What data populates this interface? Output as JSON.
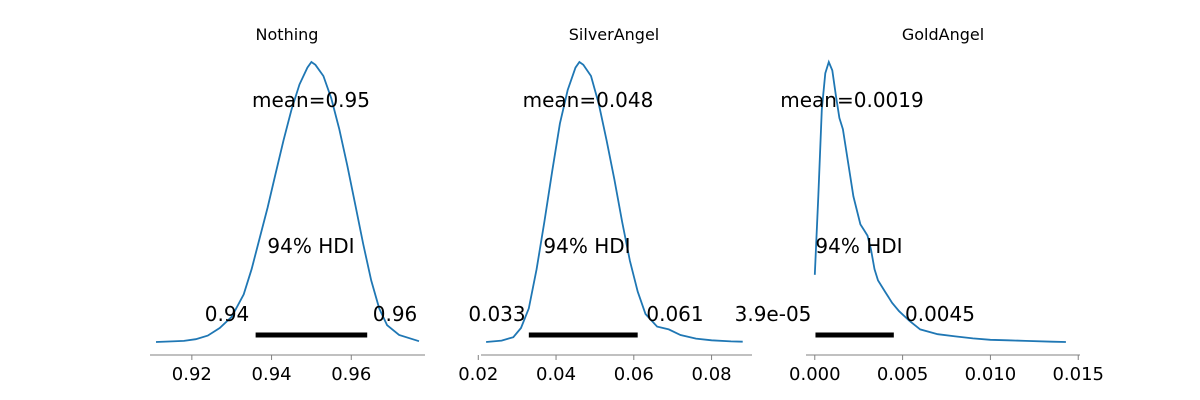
{
  "colors": {
    "density": "#1f77b4",
    "hdi_bar": "#000000",
    "axis": "#808080"
  },
  "hdi_label": "94% HDI",
  "chart_data": [
    {
      "type": "line",
      "title": "Nothing",
      "mean_label": "mean=0.95",
      "hdi": [
        0.936,
        0.964
      ],
      "hdi_labels": [
        "0.94",
        "0.96"
      ],
      "xlim": [
        0.9095,
        0.9785
      ],
      "ticks": [
        0.92,
        0.94,
        0.96
      ],
      "tick_labels": [
        "0.92",
        "0.94",
        "0.96"
      ],
      "x": [
        0.911,
        0.915,
        0.918,
        0.921,
        0.924,
        0.927,
        0.93,
        0.933,
        0.935,
        0.937,
        0.939,
        0.941,
        0.943,
        0.945,
        0.947,
        0.949,
        0.95,
        0.951,
        0.953,
        0.955,
        0.957,
        0.959,
        0.961,
        0.963,
        0.965,
        0.967,
        0.969,
        0.972,
        0.977
      ],
      "y": [
        0.0,
        0.002,
        0.004,
        0.01,
        0.023,
        0.05,
        0.09,
        0.17,
        0.26,
        0.37,
        0.48,
        0.6,
        0.72,
        0.83,
        0.92,
        0.98,
        1.0,
        0.99,
        0.95,
        0.87,
        0.76,
        0.63,
        0.49,
        0.35,
        0.22,
        0.12,
        0.06,
        0.025,
        0.003
      ]
    },
    {
      "type": "line",
      "title": "SilverAngel",
      "mean_label": "mean=0.048",
      "hdi": [
        0.033,
        0.061
      ],
      "hdi_labels": [
        "0.033",
        "0.061"
      ],
      "xlim": [
        0.0207,
        0.0904
      ],
      "ticks": [
        0.02,
        0.04,
        0.06,
        0.08
      ],
      "tick_labels": [
        "0.02",
        "0.04",
        "0.06",
        "0.08"
      ],
      "x": [
        0.022,
        0.026,
        0.029,
        0.031,
        0.033,
        0.035,
        0.037,
        0.039,
        0.041,
        0.043,
        0.045,
        0.046,
        0.047,
        0.049,
        0.051,
        0.053,
        0.055,
        0.057,
        0.059,
        0.061,
        0.063,
        0.066,
        0.069,
        0.072,
        0.076,
        0.08,
        0.085,
        0.088
      ],
      "y": [
        0.0,
        0.005,
        0.017,
        0.05,
        0.12,
        0.26,
        0.43,
        0.61,
        0.78,
        0.9,
        0.98,
        1.0,
        0.99,
        0.95,
        0.85,
        0.72,
        0.58,
        0.43,
        0.29,
        0.18,
        0.1,
        0.055,
        0.045,
        0.025,
        0.012,
        0.006,
        0.002,
        0.001
      ]
    },
    {
      "type": "line",
      "title": "GoldAngel",
      "mean_label": "mean=0.0019",
      "hdi": [
        3.9e-05,
        0.0045
      ],
      "hdi_labels": [
        "3.9e-05",
        "0.0045"
      ],
      "xlim": [
        -0.0005,
        0.0151
      ],
      "ticks": [
        0.0,
        0.005,
        0.01,
        0.015
      ],
      "tick_labels": [
        "0.000",
        "0.005",
        "0.010",
        "0.015"
      ],
      "x": [
        0.0,
        0.0002,
        0.0004,
        0.0006,
        0.0008,
        0.001,
        0.0012,
        0.0014,
        0.0016,
        0.0018,
        0.002,
        0.0022,
        0.0024,
        0.0026,
        0.0028,
        0.003,
        0.0032,
        0.0034,
        0.0036,
        0.004,
        0.0044,
        0.0048,
        0.0054,
        0.006,
        0.007,
        0.008,
        0.009,
        0.01,
        0.011,
        0.012,
        0.0135,
        0.0143
      ],
      "y": [
        0.24,
        0.52,
        0.83,
        0.96,
        1.0,
        0.97,
        0.88,
        0.8,
        0.76,
        0.68,
        0.6,
        0.52,
        0.47,
        0.42,
        0.4,
        0.38,
        0.33,
        0.26,
        0.22,
        0.18,
        0.14,
        0.11,
        0.075,
        0.045,
        0.028,
        0.02,
        0.013,
        0.008,
        0.006,
        0.004,
        0.001,
        0.0
      ]
    }
  ]
}
